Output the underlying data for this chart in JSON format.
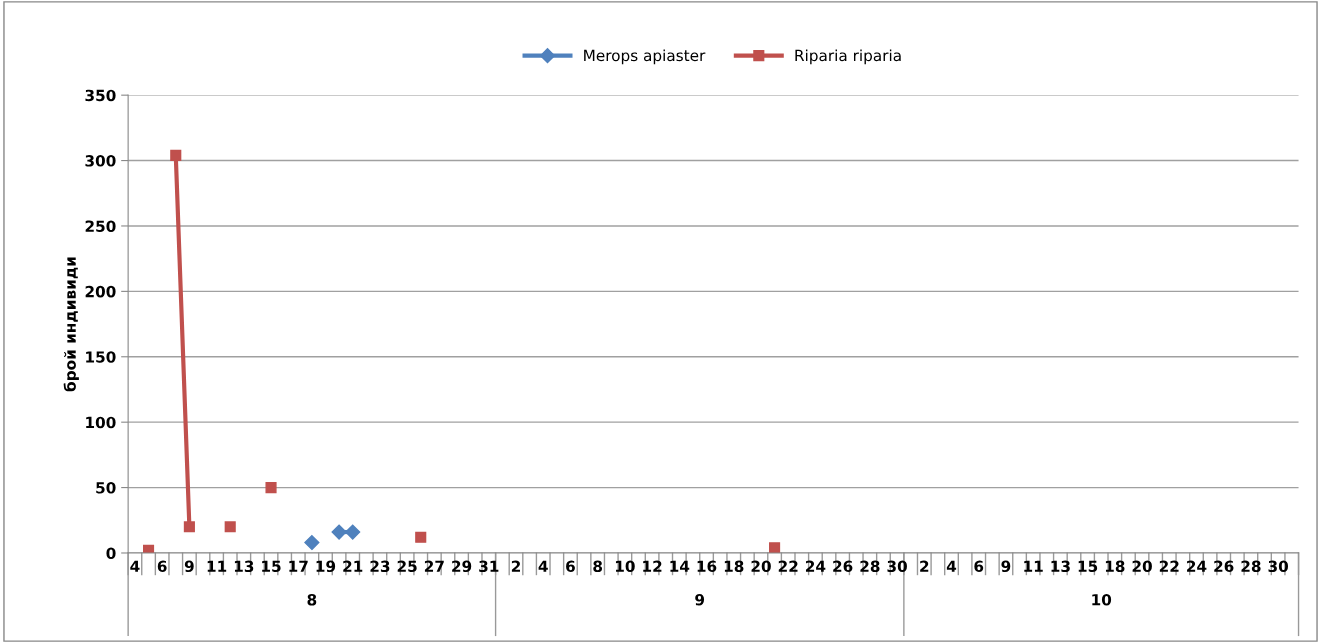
{
  "chart_data": {
    "type": "line",
    "ylabel": "брой индивиди",
    "categories": [
      "4",
      null,
      "6",
      null,
      "9",
      null,
      "11",
      null,
      "13",
      null,
      "15",
      null,
      "17",
      null,
      "19",
      null,
      "21",
      null,
      "23",
      null,
      "25",
      null,
      "27",
      null,
      "29",
      null,
      "31",
      null,
      "2",
      null,
      "4",
      null,
      "6",
      null,
      "8",
      null,
      "10",
      null,
      "12",
      null,
      "14",
      null,
      "16",
      null,
      "18",
      null,
      "20",
      null,
      "22",
      null,
      "24",
      null,
      "26",
      null,
      "28",
      null,
      "30",
      null,
      "2",
      null,
      "4",
      null,
      "6",
      null,
      "9",
      null,
      "11",
      null,
      "13",
      null,
      "15",
      null,
      "18",
      null,
      "20",
      null,
      "22",
      null,
      "24",
      null,
      "26",
      null,
      "28",
      null,
      "30",
      null
    ],
    "annotations": [
      "8",
      "9",
      "10"
    ],
    "series": [
      {
        "name": "Merops apiaster",
        "color": "#4f81bd",
        "marker": "diamond",
        "values": [
          null,
          null,
          null,
          null,
          null,
          null,
          null,
          null,
          null,
          null,
          null,
          null,
          null,
          8,
          null,
          16,
          16,
          null,
          null,
          null,
          null,
          null,
          null,
          null,
          null,
          null,
          null,
          null,
          null,
          null,
          null,
          null,
          null,
          null,
          null,
          null,
          null,
          null,
          null,
          null,
          null,
          null,
          null,
          null,
          null,
          null,
          null,
          null,
          null,
          null,
          null,
          null,
          null,
          null,
          null,
          null,
          null,
          null,
          null,
          null,
          null,
          null,
          null,
          null,
          null,
          null,
          null,
          null,
          null,
          null,
          null,
          null,
          null,
          null,
          null,
          null,
          null,
          null,
          null,
          null,
          null,
          null,
          null,
          null,
          null,
          null
        ]
      },
      {
        "name": "Riparia riparia",
        "color": "#c0504d",
        "marker": "square",
        "values": [
          null,
          2,
          null,
          304,
          20,
          null,
          null,
          20,
          null,
          null,
          50,
          null,
          null,
          null,
          null,
          null,
          null,
          null,
          null,
          null,
          null,
          12,
          null,
          null,
          null,
          null,
          null,
          null,
          null,
          null,
          null,
          null,
          null,
          null,
          null,
          null,
          null,
          null,
          null,
          null,
          null,
          null,
          null,
          null,
          null,
          null,
          null,
          4,
          null,
          null,
          null,
          null,
          null,
          null,
          null,
          null,
          null,
          null,
          null,
          null,
          null,
          null,
          null,
          null,
          null,
          null,
          null,
          null,
          null,
          null,
          null,
          null,
          null,
          null,
          null,
          null,
          null,
          null,
          null,
          null,
          null,
          null,
          null,
          null,
          null,
          null
        ]
      }
    ],
    "ylim": [
      0,
      350
    ],
    "yticks": [
      0,
      50,
      100,
      150,
      200,
      250,
      300,
      350
    ],
    "grid": "y",
    "legend": "top",
    "line_style": "solid"
  }
}
